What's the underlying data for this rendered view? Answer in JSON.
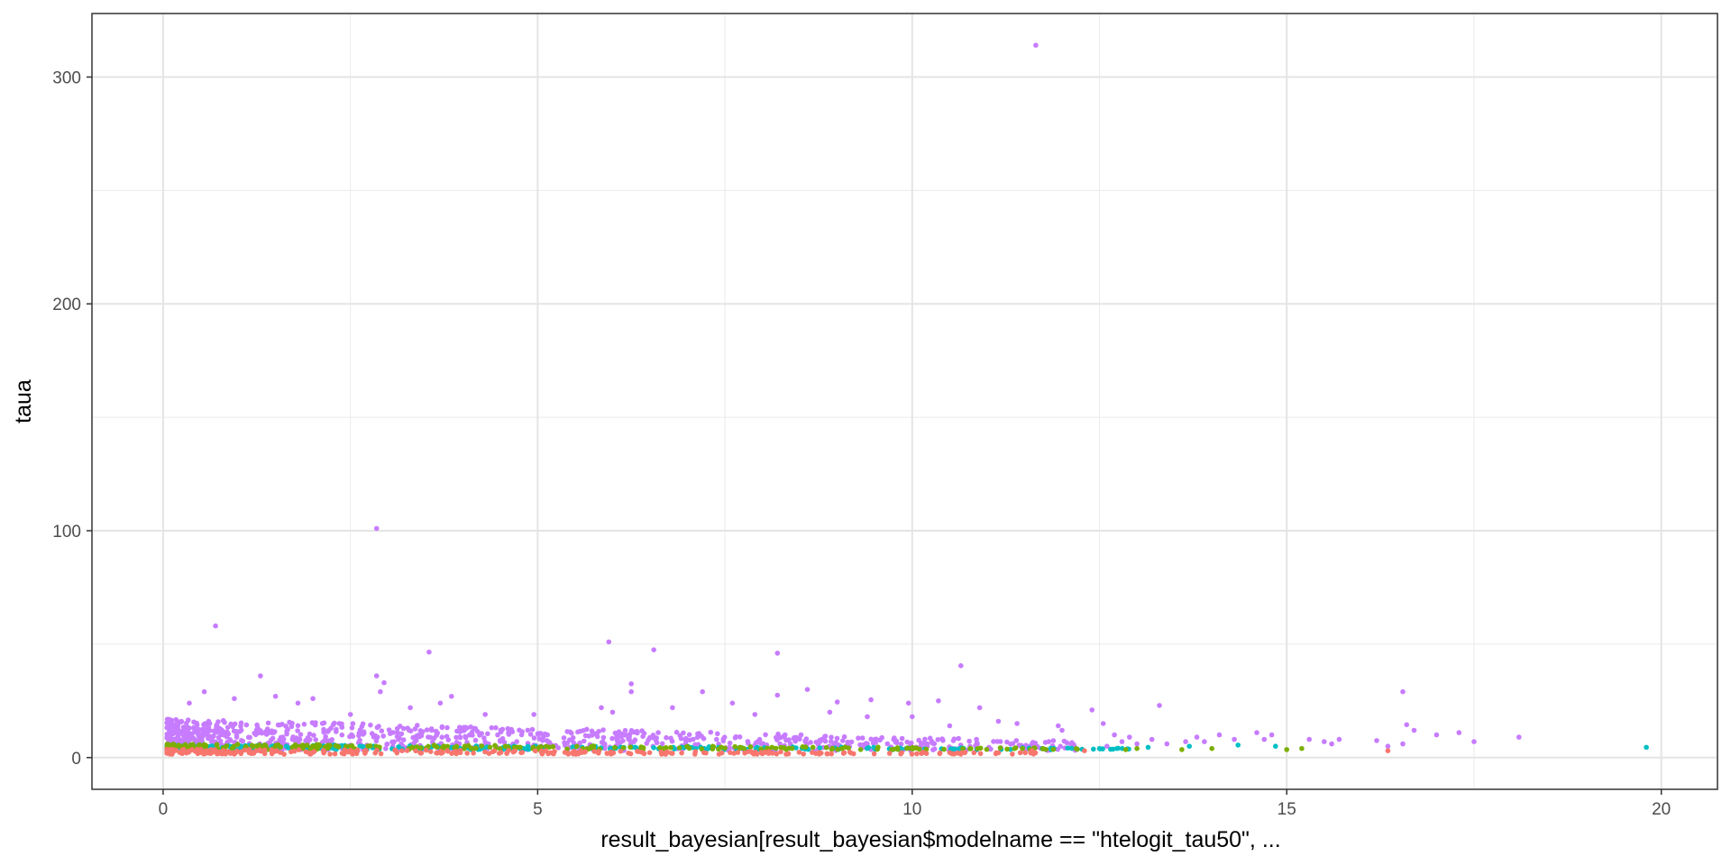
{
  "chart_data": {
    "type": "scatter",
    "title": "",
    "xlabel": "result_bayesian[result_bayesian$modelname == \"htelogit_tau50\", ...",
    "ylabel": "taua",
    "xlim": [
      -0.95,
      20.75
    ],
    "ylim": [
      -14,
      328
    ],
    "x_ticks": [
      0,
      5,
      10,
      15,
      20
    ],
    "y_ticks": [
      0,
      100,
      200,
      300
    ],
    "x_tick_labels": [
      "0",
      "5",
      "10",
      "15",
      "20"
    ],
    "y_tick_labels": [
      "0",
      "100",
      "200",
      "300"
    ],
    "grid": true,
    "legend": "none",
    "series": [
      {
        "name": "purple",
        "color": "#C77CFF",
        "points": [
          [
            11.65,
            314
          ],
          [
            2.85,
            101
          ],
          [
            0.7,
            58
          ],
          [
            5.95,
            51
          ],
          [
            6.55,
            47.5
          ],
          [
            3.55,
            46.5
          ],
          [
            8.2,
            46
          ],
          [
            10.65,
            40.5
          ],
          [
            1.3,
            36
          ],
          [
            2.85,
            36
          ],
          [
            2.95,
            33
          ],
          [
            6.25,
            32.5
          ],
          [
            6.25,
            29
          ],
          [
            16.55,
            29
          ],
          [
            7.2,
            29
          ],
          [
            8.2,
            27.5
          ],
          [
            8.6,
            30
          ],
          [
            0.55,
            29
          ],
          [
            0.95,
            26
          ],
          [
            1.5,
            27
          ],
          [
            2.0,
            26
          ],
          [
            2.9,
            29
          ],
          [
            3.85,
            27
          ],
          [
            9.45,
            25.5
          ],
          [
            10.35,
            25
          ],
          [
            9.95,
            24
          ],
          [
            9.0,
            24.5
          ],
          [
            11.95,
            14
          ],
          [
            12.0,
            12
          ],
          [
            12.4,
            21
          ],
          [
            13.3,
            23
          ],
          [
            12.55,
            15
          ],
          [
            16.6,
            14.5
          ],
          [
            16.7,
            12
          ],
          [
            17.3,
            11
          ],
          [
            17.0,
            10
          ],
          [
            18.1,
            9
          ],
          [
            17.5,
            7
          ],
          [
            16.2,
            7.5
          ],
          [
            16.35,
            5
          ],
          [
            16.55,
            6
          ],
          [
            15.5,
            7
          ],
          [
            15.7,
            8
          ],
          [
            15.3,
            8
          ],
          [
            15.6,
            6
          ],
          [
            14.6,
            11
          ],
          [
            14.8,
            10
          ],
          [
            14.7,
            8
          ],
          [
            14.1,
            10
          ],
          [
            14.3,
            8
          ],
          [
            13.8,
            9
          ],
          [
            13.9,
            7
          ],
          [
            13.65,
            7
          ],
          [
            13.4,
            6
          ],
          [
            13.2,
            8
          ],
          [
            13.0,
            6
          ],
          [
            12.9,
            9
          ],
          [
            12.8,
            7
          ],
          [
            12.7,
            10
          ],
          [
            12.6,
            5
          ],
          [
            7.6,
            24
          ],
          [
            6.8,
            22
          ],
          [
            4.3,
            19
          ],
          [
            4.95,
            19
          ],
          [
            2.5,
            19
          ],
          [
            3.3,
            22
          ],
          [
            3.7,
            24
          ],
          [
            1.8,
            24
          ],
          [
            0.35,
            24
          ],
          [
            5.85,
            22
          ],
          [
            6.0,
            20
          ],
          [
            7.9,
            19
          ],
          [
            8.9,
            20
          ],
          [
            9.4,
            18
          ],
          [
            10.0,
            18
          ],
          [
            11.15,
            16
          ],
          [
            11.4,
            15
          ],
          [
            10.9,
            22
          ],
          [
            10.5,
            14
          ]
        ],
        "band": {
          "x_range": [
            0.05,
            12.2
          ],
          "y_base": 3,
          "y_height": 14,
          "density": 900
        }
      },
      {
        "name": "cyan",
        "color": "#00BFC4",
        "points": [
          [
            19.8,
            4.5
          ],
          [
            14.85,
            5
          ],
          [
            13.7,
            5
          ],
          [
            14.35,
            5.5
          ],
          [
            12.5,
            4
          ],
          [
            13.15,
            4.5
          ]
        ],
        "band": {
          "x_range": [
            0.05,
            12.9
          ],
          "y_base": 3.5,
          "y_height": 2.2,
          "density": 260
        }
      },
      {
        "name": "green",
        "color": "#7CAE00",
        "points": [
          [
            15.0,
            3.5
          ],
          [
            15.2,
            4
          ],
          [
            14.0,
            4
          ],
          [
            13.6,
            3.5
          ],
          [
            12.85,
            3.5
          ],
          [
            13.0,
            4
          ]
        ],
        "band": {
          "x_range": [
            0.05,
            12.3
          ],
          "y_base": 3.5,
          "y_height": 2.5,
          "density": 260
        }
      },
      {
        "name": "red",
        "color": "#F8766D",
        "points": [
          [
            16.35,
            3
          ],
          [
            12.3,
            3
          ],
          [
            11.6,
            3
          ]
        ],
        "band": {
          "x_range": [
            0.05,
            11.7
          ],
          "y_base": 1.5,
          "y_height": 2.2,
          "density": 300
        }
      }
    ]
  }
}
